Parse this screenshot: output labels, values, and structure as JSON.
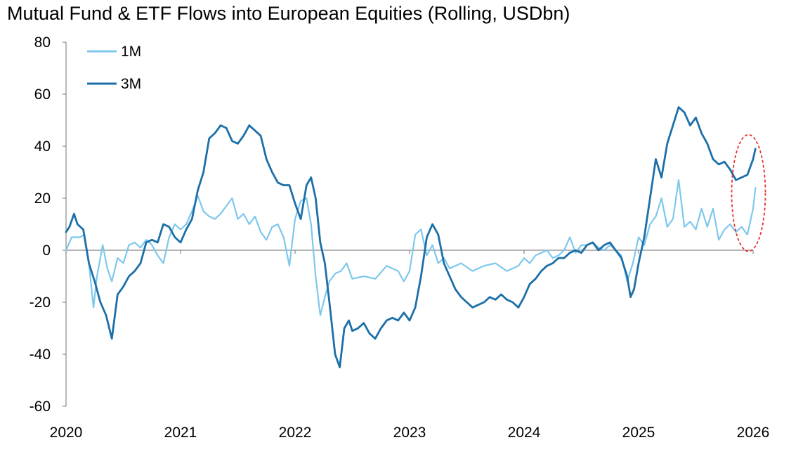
{
  "chart_data": {
    "type": "line",
    "title": "Mutual Fund & ETF Flows into European Equities (Rolling, USDbn)",
    "xlabel": "",
    "ylabel": "",
    "xlim": [
      2020,
      2026
    ],
    "ylim": [
      -60,
      80
    ],
    "yticks": [
      80,
      60,
      40,
      20,
      0,
      -20,
      -40,
      -60
    ],
    "xticks": [
      2020,
      2021,
      2022,
      2023,
      2024,
      2025,
      2026
    ],
    "legend_position": "top-left",
    "colors": {
      "1M": "#7ec8ec",
      "3M": "#1c6fa8",
      "highlight": "#e8332a"
    },
    "highlight_ellipse": {
      "x": 2025.96,
      "y": 22
    },
    "series": [
      {
        "name": "1M",
        "points": [
          [
            2020.0,
            0
          ],
          [
            2020.05,
            5
          ],
          [
            2020.12,
            5
          ],
          [
            2020.16,
            6
          ],
          [
            2020.2,
            -5
          ],
          [
            2020.24,
            -22
          ],
          [
            2020.27,
            -10
          ],
          [
            2020.32,
            2
          ],
          [
            2020.36,
            -7
          ],
          [
            2020.4,
            -12
          ],
          [
            2020.45,
            -3
          ],
          [
            2020.5,
            -5
          ],
          [
            2020.55,
            2
          ],
          [
            2020.6,
            3
          ],
          [
            2020.65,
            1
          ],
          [
            2020.7,
            4
          ],
          [
            2020.75,
            2
          ],
          [
            2020.8,
            -2
          ],
          [
            2020.85,
            -5
          ],
          [
            2020.9,
            5
          ],
          [
            2020.95,
            10
          ],
          [
            2021.0,
            8
          ],
          [
            2021.05,
            10
          ],
          [
            2021.1,
            15
          ],
          [
            2021.15,
            21
          ],
          [
            2021.2,
            15
          ],
          [
            2021.25,
            13
          ],
          [
            2021.3,
            12
          ],
          [
            2021.35,
            14
          ],
          [
            2021.4,
            17
          ],
          [
            2021.45,
            20
          ],
          [
            2021.5,
            12
          ],
          [
            2021.55,
            14
          ],
          [
            2021.6,
            10
          ],
          [
            2021.65,
            13
          ],
          [
            2021.7,
            7
          ],
          [
            2021.75,
            4
          ],
          [
            2021.8,
            9
          ],
          [
            2021.85,
            10
          ],
          [
            2021.9,
            5
          ],
          [
            2021.95,
            -6
          ],
          [
            2022.0,
            12
          ],
          [
            2022.05,
            19
          ],
          [
            2022.1,
            20
          ],
          [
            2022.14,
            10
          ],
          [
            2022.18,
            -10
          ],
          [
            2022.22,
            -25
          ],
          [
            2022.26,
            -18
          ],
          [
            2022.3,
            -12
          ],
          [
            2022.35,
            -9
          ],
          [
            2022.4,
            -8
          ],
          [
            2022.45,
            -5
          ],
          [
            2022.5,
            -11
          ],
          [
            2022.6,
            -10
          ],
          [
            2022.7,
            -11
          ],
          [
            2022.8,
            -6
          ],
          [
            2022.9,
            -8
          ],
          [
            2022.95,
            -12
          ],
          [
            2023.0,
            -8
          ],
          [
            2023.05,
            6
          ],
          [
            2023.1,
            8
          ],
          [
            2023.15,
            -2
          ],
          [
            2023.2,
            2
          ],
          [
            2023.25,
            -5
          ],
          [
            2023.3,
            -3
          ],
          [
            2023.35,
            -7
          ],
          [
            2023.45,
            -5
          ],
          [
            2023.55,
            -8
          ],
          [
            2023.65,
            -6
          ],
          [
            2023.75,
            -5
          ],
          [
            2023.85,
            -8
          ],
          [
            2023.95,
            -6
          ],
          [
            2024.0,
            -3
          ],
          [
            2024.05,
            -5
          ],
          [
            2024.1,
            -2
          ],
          [
            2024.15,
            -1
          ],
          [
            2024.2,
            0
          ],
          [
            2024.25,
            -3
          ],
          [
            2024.3,
            -2
          ],
          [
            2024.35,
            0
          ],
          [
            2024.4,
            5
          ],
          [
            2024.45,
            -1
          ],
          [
            2024.5,
            2
          ],
          [
            2024.55,
            2
          ],
          [
            2024.6,
            3
          ],
          [
            2024.65,
            1
          ],
          [
            2024.7,
            0
          ],
          [
            2024.75,
            2
          ],
          [
            2024.8,
            0
          ],
          [
            2024.85,
            -2
          ],
          [
            2024.9,
            -12
          ],
          [
            2024.95,
            -5
          ],
          [
            2025.0,
            5
          ],
          [
            2025.05,
            2
          ],
          [
            2025.1,
            10
          ],
          [
            2025.15,
            13
          ],
          [
            2025.2,
            20
          ],
          [
            2025.25,
            9
          ],
          [
            2025.3,
            12
          ],
          [
            2025.35,
            27
          ],
          [
            2025.4,
            9
          ],
          [
            2025.45,
            11
          ],
          [
            2025.5,
            8
          ],
          [
            2025.55,
            16
          ],
          [
            2025.6,
            9
          ],
          [
            2025.65,
            16
          ],
          [
            2025.7,
            4
          ],
          [
            2025.75,
            8
          ],
          [
            2025.8,
            10
          ],
          [
            2025.85,
            7
          ],
          [
            2025.9,
            9
          ],
          [
            2025.95,
            6
          ],
          [
            2026.0,
            16
          ],
          [
            2026.02,
            24
          ]
        ]
      },
      {
        "name": "3M",
        "points": [
          [
            2020.0,
            7
          ],
          [
            2020.03,
            9
          ],
          [
            2020.07,
            14
          ],
          [
            2020.1,
            10
          ],
          [
            2020.15,
            8
          ],
          [
            2020.2,
            -5
          ],
          [
            2020.25,
            -12
          ],
          [
            2020.3,
            -20
          ],
          [
            2020.35,
            -25
          ],
          [
            2020.4,
            -34
          ],
          [
            2020.45,
            -17
          ],
          [
            2020.5,
            -14
          ],
          [
            2020.55,
            -10
          ],
          [
            2020.6,
            -8
          ],
          [
            2020.65,
            -5
          ],
          [
            2020.7,
            3
          ],
          [
            2020.75,
            4
          ],
          [
            2020.8,
            3
          ],
          [
            2020.85,
            10
          ],
          [
            2020.9,
            9
          ],
          [
            2020.95,
            5
          ],
          [
            2021.0,
            3
          ],
          [
            2021.05,
            8
          ],
          [
            2021.1,
            12
          ],
          [
            2021.15,
            23
          ],
          [
            2021.2,
            30
          ],
          [
            2021.25,
            43
          ],
          [
            2021.3,
            45
          ],
          [
            2021.35,
            48
          ],
          [
            2021.4,
            47
          ],
          [
            2021.45,
            42
          ],
          [
            2021.5,
            41
          ],
          [
            2021.55,
            44
          ],
          [
            2021.6,
            48
          ],
          [
            2021.65,
            46
          ],
          [
            2021.7,
            44
          ],
          [
            2021.75,
            35
          ],
          [
            2021.8,
            30
          ],
          [
            2021.85,
            26
          ],
          [
            2021.9,
            25
          ],
          [
            2021.95,
            25
          ],
          [
            2022.0,
            18
          ],
          [
            2022.05,
            12
          ],
          [
            2022.1,
            25
          ],
          [
            2022.14,
            28
          ],
          [
            2022.18,
            20
          ],
          [
            2022.22,
            3
          ],
          [
            2022.26,
            -5
          ],
          [
            2022.3,
            -20
          ],
          [
            2022.35,
            -40
          ],
          [
            2022.39,
            -45
          ],
          [
            2022.43,
            -30
          ],
          [
            2022.47,
            -27
          ],
          [
            2022.5,
            -31
          ],
          [
            2022.55,
            -30
          ],
          [
            2022.6,
            -28
          ],
          [
            2022.65,
            -32
          ],
          [
            2022.7,
            -34
          ],
          [
            2022.75,
            -30
          ],
          [
            2022.8,
            -27
          ],
          [
            2022.85,
            -26
          ],
          [
            2022.9,
            -27
          ],
          [
            2022.95,
            -24
          ],
          [
            2023.0,
            -27
          ],
          [
            2023.05,
            -22
          ],
          [
            2023.1,
            -10
          ],
          [
            2023.15,
            5
          ],
          [
            2023.2,
            10
          ],
          [
            2023.25,
            6
          ],
          [
            2023.3,
            -5
          ],
          [
            2023.35,
            -10
          ],
          [
            2023.4,
            -15
          ],
          [
            2023.45,
            -18
          ],
          [
            2023.5,
            -20
          ],
          [
            2023.55,
            -22
          ],
          [
            2023.6,
            -21
          ],
          [
            2023.65,
            -20
          ],
          [
            2023.7,
            -18
          ],
          [
            2023.75,
            -19
          ],
          [
            2023.8,
            -17
          ],
          [
            2023.85,
            -19
          ],
          [
            2023.9,
            -20
          ],
          [
            2023.95,
            -22
          ],
          [
            2024.0,
            -18
          ],
          [
            2024.05,
            -13
          ],
          [
            2024.1,
            -11
          ],
          [
            2024.15,
            -8
          ],
          [
            2024.2,
            -6
          ],
          [
            2024.25,
            -5
          ],
          [
            2024.3,
            -3
          ],
          [
            2024.35,
            -3
          ],
          [
            2024.4,
            -1
          ],
          [
            2024.45,
            0
          ],
          [
            2024.5,
            -1
          ],
          [
            2024.55,
            2
          ],
          [
            2024.6,
            3
          ],
          [
            2024.65,
            0
          ],
          [
            2024.7,
            2
          ],
          [
            2024.75,
            3
          ],
          [
            2024.8,
            0
          ],
          [
            2024.85,
            -3
          ],
          [
            2024.9,
            -10
          ],
          [
            2024.93,
            -18
          ],
          [
            2024.96,
            -15
          ],
          [
            2025.0,
            -5
          ],
          [
            2025.05,
            5
          ],
          [
            2025.1,
            20
          ],
          [
            2025.15,
            35
          ],
          [
            2025.2,
            28
          ],
          [
            2025.25,
            41
          ],
          [
            2025.3,
            48
          ],
          [
            2025.35,
            55
          ],
          [
            2025.4,
            53
          ],
          [
            2025.45,
            48
          ],
          [
            2025.5,
            51
          ],
          [
            2025.55,
            45
          ],
          [
            2025.6,
            41
          ],
          [
            2025.65,
            35
          ],
          [
            2025.7,
            33
          ],
          [
            2025.75,
            34
          ],
          [
            2025.8,
            31
          ],
          [
            2025.85,
            27
          ],
          [
            2025.9,
            28
          ],
          [
            2025.95,
            29
          ],
          [
            2026.0,
            35
          ],
          [
            2026.02,
            39
          ]
        ]
      }
    ]
  }
}
